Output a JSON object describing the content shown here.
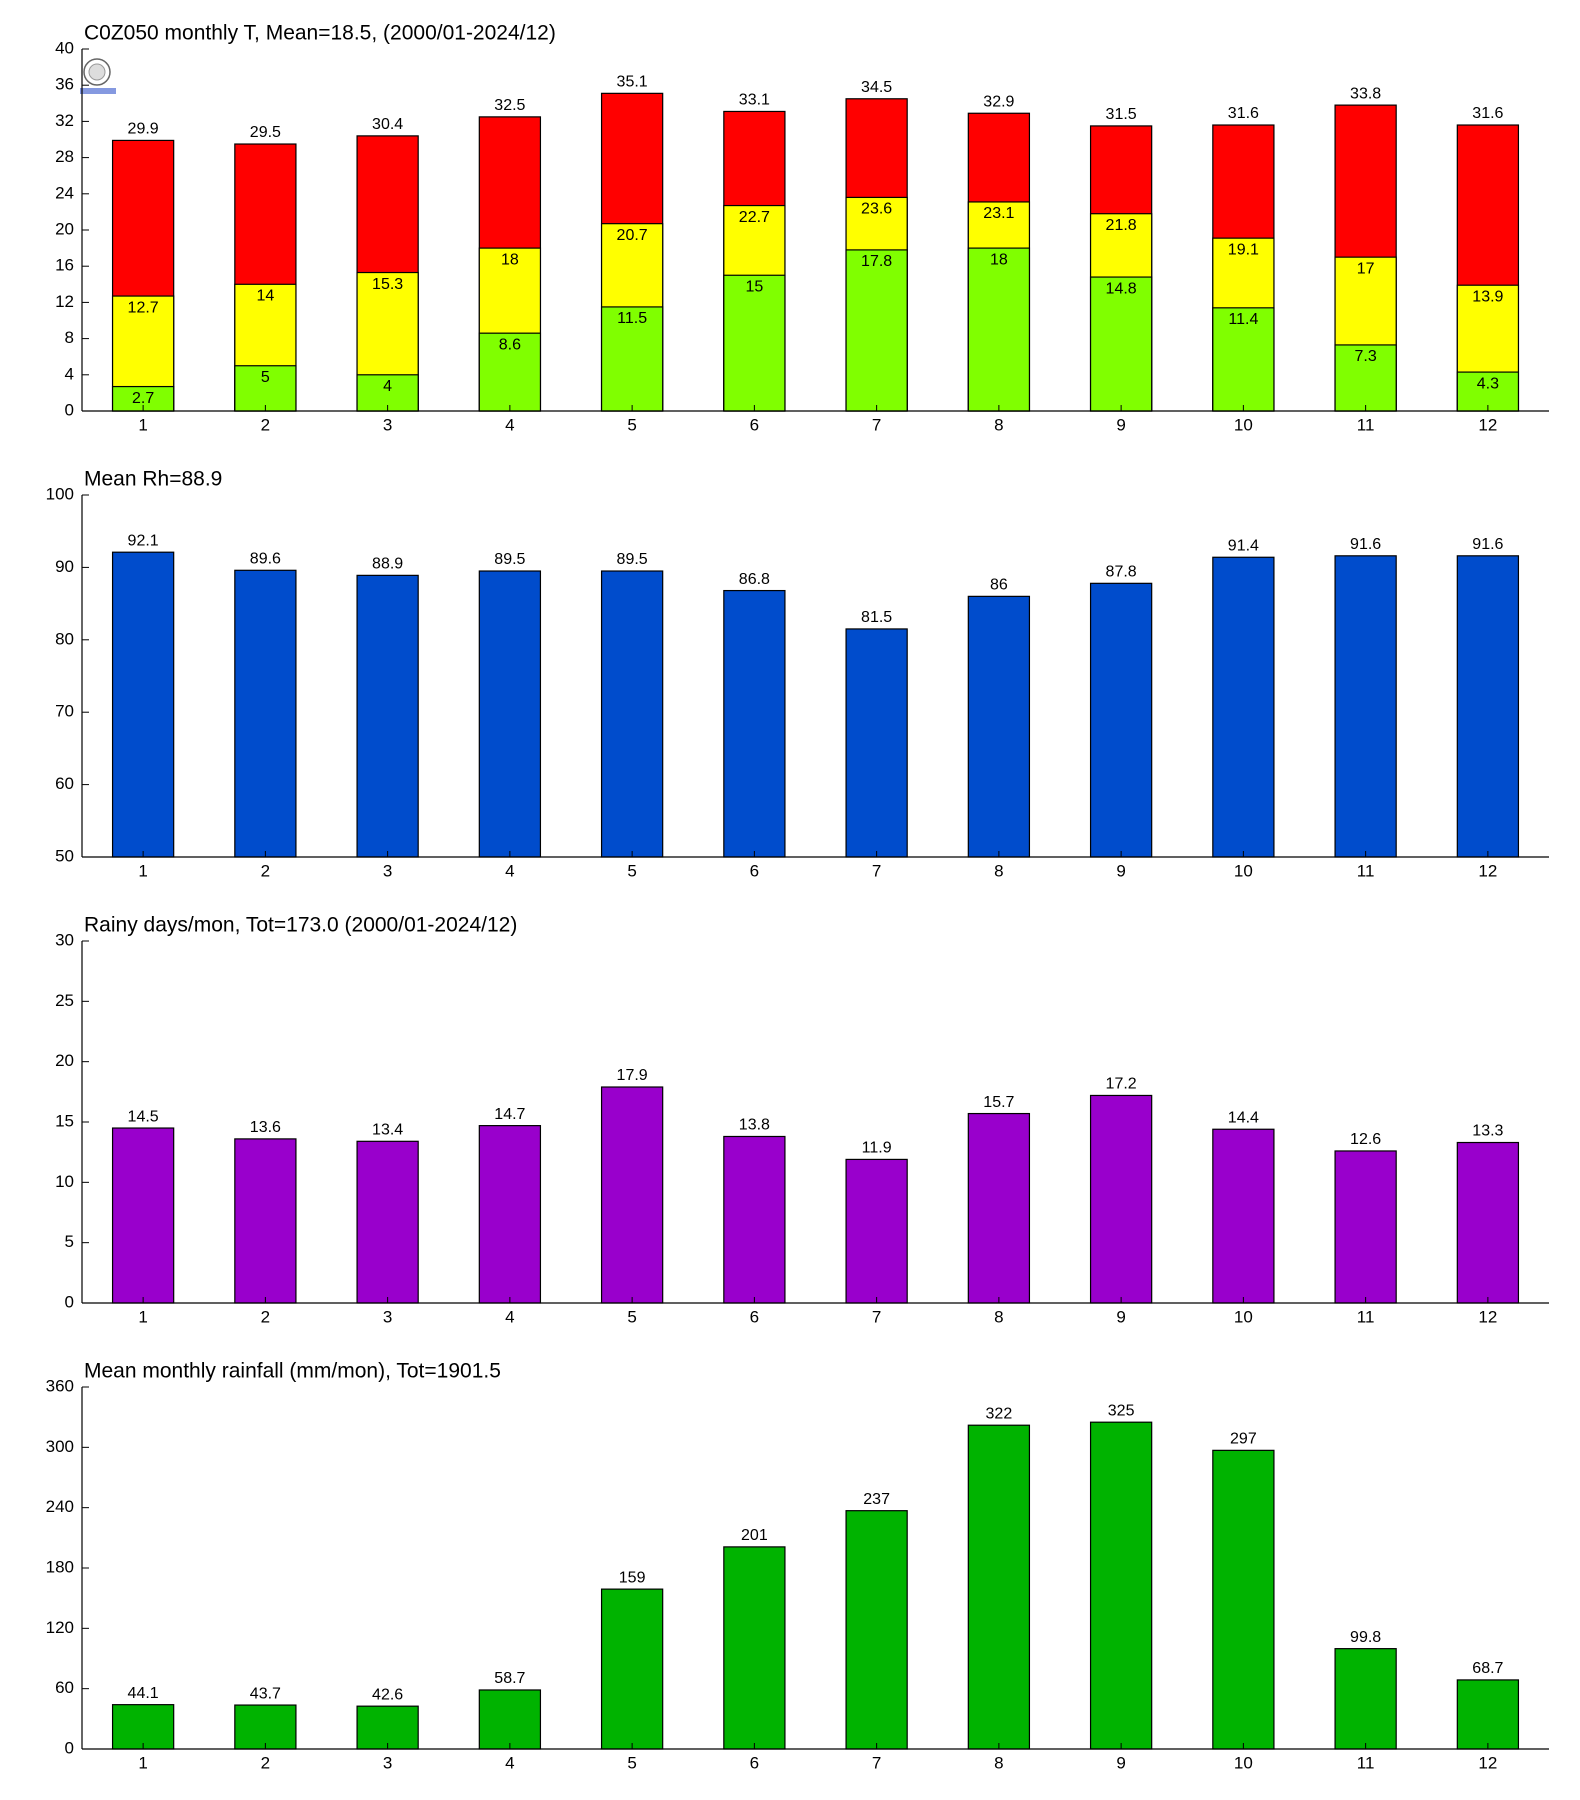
{
  "chart_data": [
    {
      "type": "bar",
      "title": "C0Z050 monthly T, Mean=18.5, (2000/01-2024/12)",
      "categories": [
        1,
        2,
        3,
        4,
        5,
        6,
        7,
        8,
        9,
        10,
        11,
        12
      ],
      "series": [
        {
          "color": "#ff0000",
          "values": [
            29.9,
            29.5,
            30.4,
            32.5,
            35.1,
            33.1,
            34.5,
            32.9,
            31.5,
            31.6,
            33.8,
            31.6
          ]
        },
        {
          "color": "#ffff00",
          "values": [
            12.7,
            14,
            15.3,
            18,
            20.7,
            22.7,
            23.6,
            23.1,
            21.8,
            19.1,
            17,
            13.9
          ]
        },
        {
          "color": "#80ff00",
          "values": [
            2.7,
            5,
            4,
            8.6,
            11.5,
            15,
            17.8,
            18,
            14.8,
            11.4,
            7.3,
            4.3
          ]
        }
      ],
      "ylim": [
        0,
        40
      ],
      "yticks": [
        0,
        4,
        8,
        12,
        16,
        20,
        24,
        28,
        32,
        36,
        40
      ]
    },
    {
      "type": "bar",
      "title": "Mean Rh=88.9",
      "categories": [
        1,
        2,
        3,
        4,
        5,
        6,
        7,
        8,
        9,
        10,
        11,
        12
      ],
      "values": [
        92.1,
        89.6,
        88.9,
        89.5,
        89.5,
        86.8,
        81.5,
        86,
        87.8,
        91.4,
        91.6,
        91.6
      ],
      "color": "#004ccc",
      "ylim": [
        50,
        100
      ],
      "yticks": [
        50,
        60,
        70,
        80,
        90,
        100
      ]
    },
    {
      "type": "bar",
      "title": "Rainy days/mon, Tot=173.0 (2000/01-2024/12)",
      "categories": [
        1,
        2,
        3,
        4,
        5,
        6,
        7,
        8,
        9,
        10,
        11,
        12
      ],
      "values": [
        14.5,
        13.6,
        13.4,
        14.7,
        17.9,
        13.8,
        11.9,
        15.7,
        17.2,
        14.4,
        12.6,
        13.3
      ],
      "color": "#9900cc",
      "ylim": [
        0,
        30
      ],
      "yticks": [
        0,
        5,
        10,
        15,
        20,
        25,
        30
      ]
    },
    {
      "type": "bar",
      "title": "Mean monthly rainfall (mm/mon), Tot=1901.5",
      "categories": [
        1,
        2,
        3,
        4,
        5,
        6,
        7,
        8,
        9,
        10,
        11,
        12
      ],
      "values": [
        44.1,
        43.7,
        42.6,
        58.7,
        159,
        201,
        237,
        322,
        325,
        297,
        99.8,
        68.7
      ],
      "color": "#00b300",
      "ylim": [
        0,
        360
      ],
      "yticks": [
        0,
        60,
        120,
        180,
        240,
        300,
        360
      ]
    }
  ]
}
